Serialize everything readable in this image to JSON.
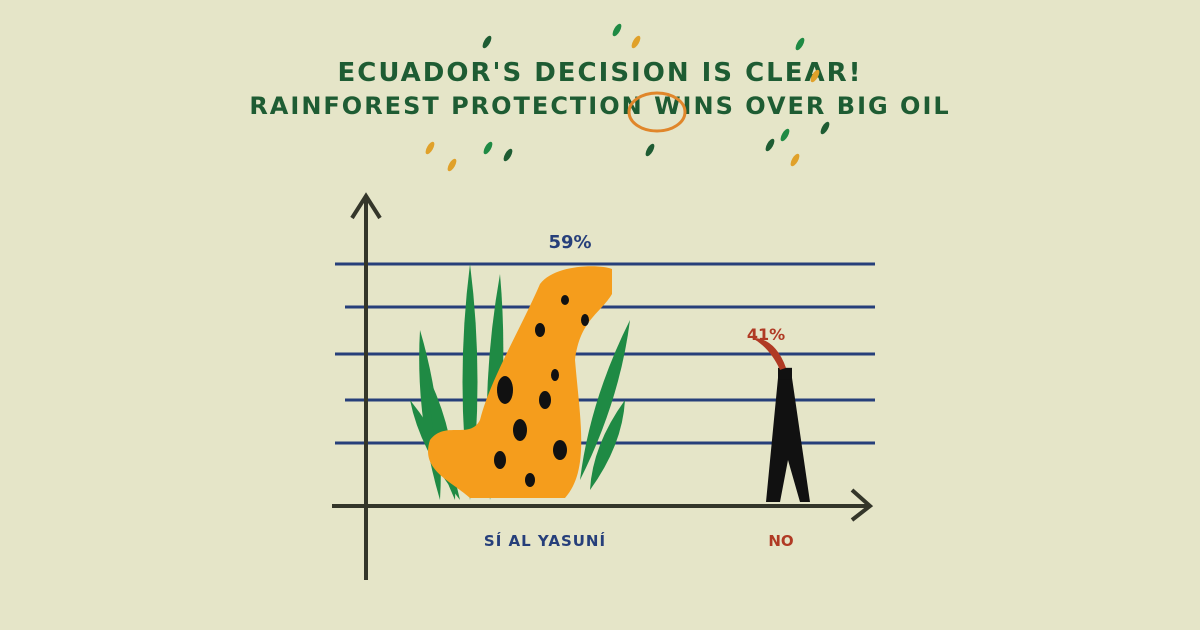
{
  "chart_data": {
    "type": "bar",
    "title": "ECUADOR'S DECISION IS CLEAR!",
    "subtitle": "RAINFOREST PROTECTION WINS OVER BIG OIL",
    "highlighted_word": "WINS",
    "categories": [
      "SÍ AL YASUNÍ",
      "NO"
    ],
    "values": [
      59,
      41
    ],
    "data_labels": [
      "59%",
      "41%"
    ],
    "ylim": [
      0,
      60
    ],
    "grid": true,
    "colors": {
      "background": "#e5e5c8",
      "title": "#1e5c33",
      "highlight": "#e0862a",
      "gridline": "#263f7a",
      "yes": "#263f7a",
      "no": "#b03a24",
      "axis": "#34362a",
      "jaguar": "#f59d1c",
      "foliage": "#1f8a44"
    },
    "bar_marks": [
      "jaguar-in-foliage",
      "oil-derrick-with-flame"
    ]
  }
}
